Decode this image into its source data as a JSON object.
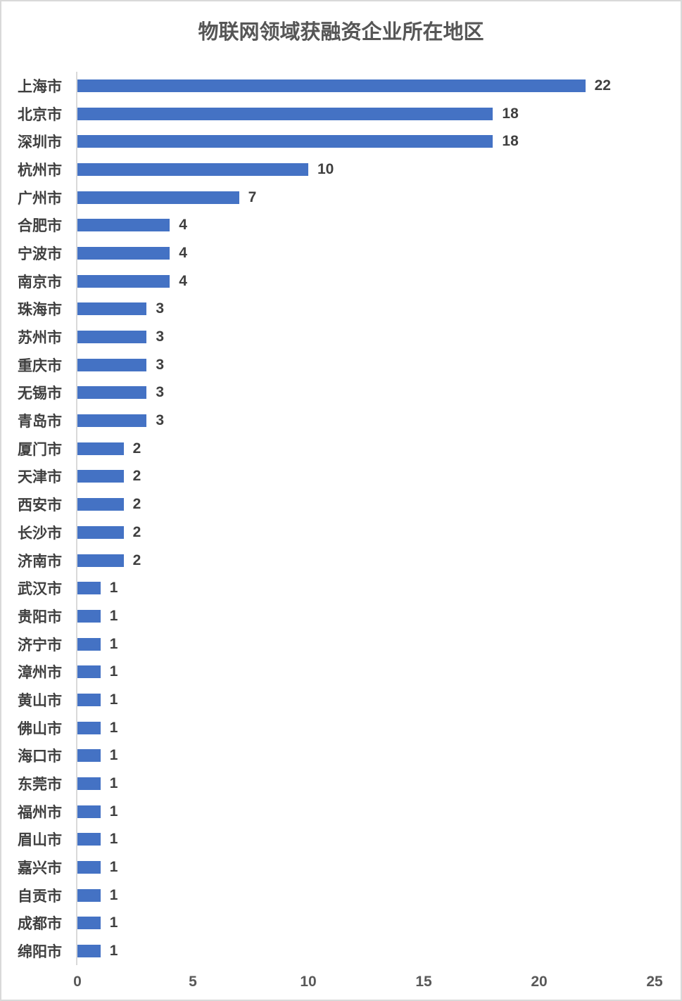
{
  "chart_data": {
    "type": "bar",
    "orientation": "horizontal",
    "title": "物联网领域获融资企业所在地区",
    "categories": [
      "上海市",
      "北京市",
      "深圳市",
      "杭州市",
      "广州市",
      "合肥市",
      "宁波市",
      "南京市",
      "珠海市",
      "苏州市",
      "重庆市",
      "无锡市",
      "青岛市",
      "厦门市",
      "天津市",
      "西安市",
      "长沙市",
      "济南市",
      "武汉市",
      "贵阳市",
      "济宁市",
      "漳州市",
      "黄山市",
      "佛山市",
      "海口市",
      "东莞市",
      "福州市",
      "眉山市",
      "嘉兴市",
      "自贡市",
      "成都市",
      "绵阳市"
    ],
    "values": [
      22,
      18,
      18,
      10,
      7,
      4,
      4,
      4,
      3,
      3,
      3,
      3,
      3,
      2,
      2,
      2,
      2,
      2,
      1,
      1,
      1,
      1,
      1,
      1,
      1,
      1,
      1,
      1,
      1,
      1,
      1,
      1
    ],
    "x_ticks": [
      0,
      5,
      10,
      15,
      20,
      25
    ],
    "xlim": [
      0,
      25
    ],
    "grid": false,
    "data_labels": true,
    "legend": "none",
    "colors": {
      "bar": "#4472c4",
      "category_label": "#3f3f3f",
      "value_label": "#3f3f3f",
      "axis_tick_label": "#595959",
      "axis_line": "#d9d9d9",
      "title": "#565656"
    }
  }
}
